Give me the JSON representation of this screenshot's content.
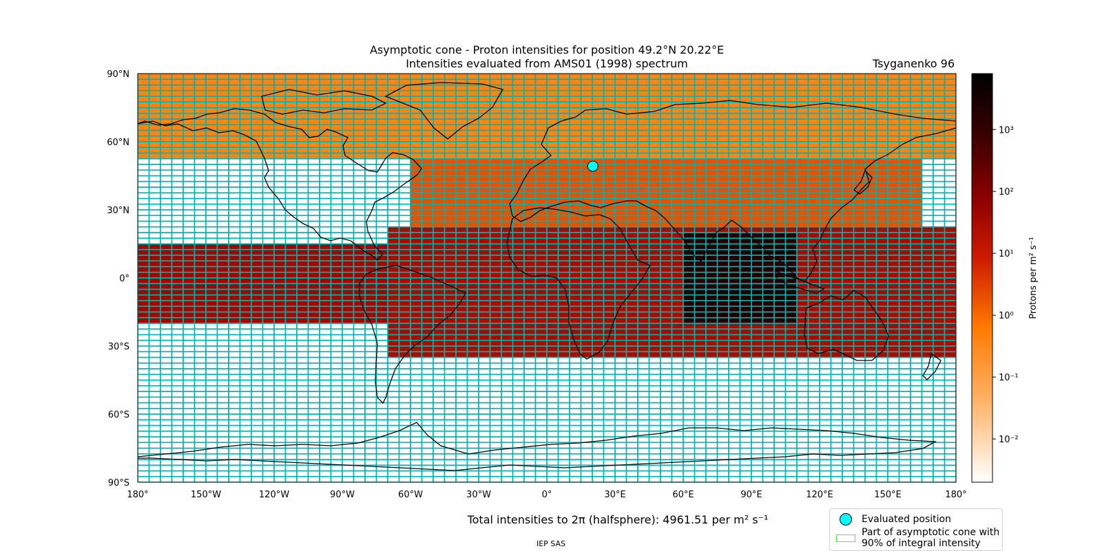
{
  "chart_data": {
    "type": "heatmap",
    "title_line1": "Asymptotic cone - Proton intensities for position 49.2°N 20.22°E",
    "title_line2": "Intensities evaluated from AMS01 (1998) spectrum",
    "model_label": "Tsyganenko 96",
    "x_ticks": [
      "180°",
      "150°W",
      "120°W",
      "90°W",
      "60°W",
      "30°W",
      "0°",
      "30°E",
      "60°E",
      "90°E",
      "120°E",
      "150°E",
      "180°"
    ],
    "y_ticks": [
      "90°N",
      "60°N",
      "30°N",
      "0°",
      "30°S",
      "60°S",
      "90°S"
    ],
    "xlim": [
      -180,
      180
    ],
    "ylim": [
      -90,
      90
    ],
    "cell_width_deg": 5,
    "cell_height_deg": 2.5,
    "colorbar": {
      "label": "Protons per m² s⁻¹",
      "scale": "log",
      "range": [
        0.002,
        8000
      ],
      "tick_values": [
        0.01,
        0.1,
        1,
        10,
        100,
        1000
      ],
      "tick_labels": [
        "10⁻²",
        "10⁻¹",
        "10⁰",
        "10¹",
        "10²",
        "10³"
      ],
      "colormap": "gist_heat_r"
    },
    "evaluated_position": {
      "lat": 49.2,
      "lon": 20.22
    },
    "region_90pct_color": "#00b3b3",
    "total_label": "Total intensities to 2π (halfsphere): 4961.51 per m² s⁻¹",
    "regions": [
      {
        "name": "north polar band",
        "lat": [
          52.5,
          90
        ],
        "lon": [
          -180,
          180
        ],
        "intensity": 0.4
      },
      {
        "name": "northern mid band",
        "lat": [
          22.5,
          52.5
        ],
        "lon": [
          -60,
          165
        ],
        "intensity": 2
      },
      {
        "name": "equatorial belt west",
        "lat": [
          -20,
          15
        ],
        "lon": [
          -180,
          -70
        ],
        "intensity": 40
      },
      {
        "name": "equatorial belt east",
        "lat": [
          -35,
          22.5
        ],
        "lon": [
          -70,
          180
        ],
        "intensity": 30
      },
      {
        "name": "peak region",
        "lat": [
          -20,
          20
        ],
        "lon": [
          60,
          110
        ],
        "intensity": 2000
      }
    ],
    "legend": [
      {
        "label": "Evaluated position",
        "symbol": "circle",
        "color": "#00ffff"
      },
      {
        "label": "Part of asymptotic cone with 90% of integral intensity",
        "label_line1": "Part of asymptotic cone with",
        "label_line2": "90% of integral intensity",
        "symbol": "rect",
        "color": "#33ff33"
      }
    ]
  },
  "footer": "IEP SAS"
}
